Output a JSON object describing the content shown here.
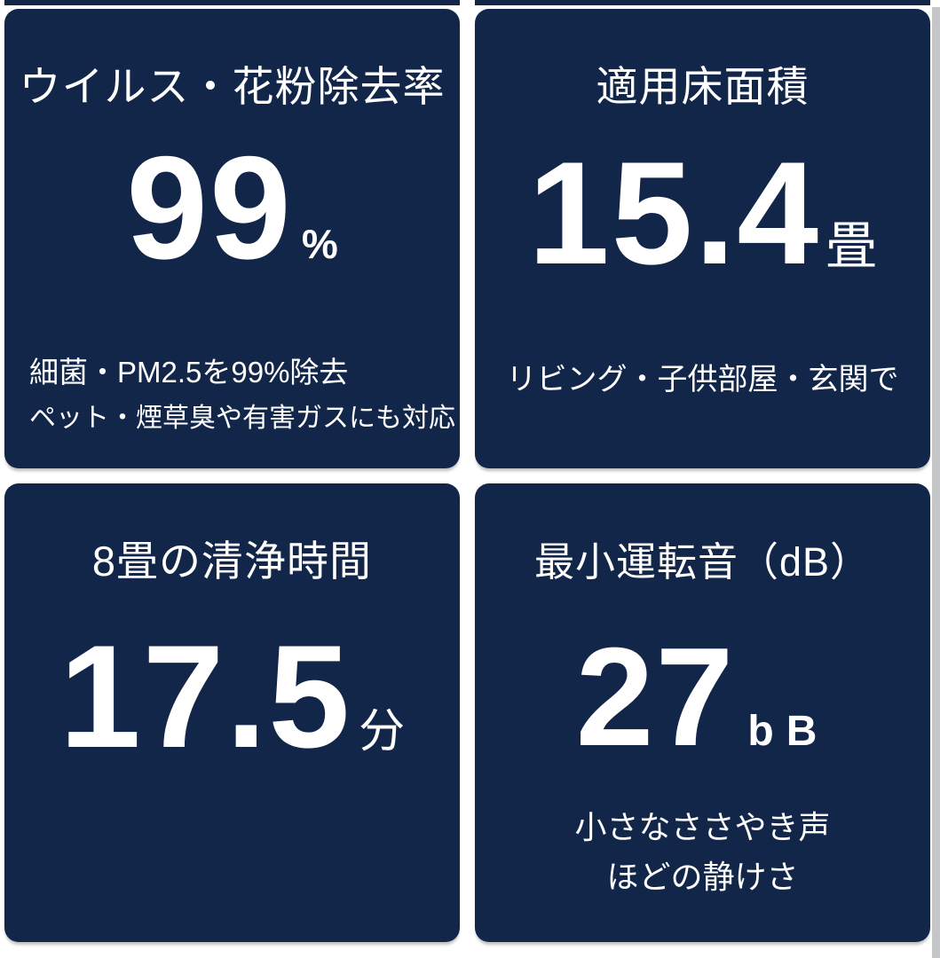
{
  "colors": {
    "background": "#ffffff",
    "card": "#122649",
    "text": "#ffffff",
    "edge_strip": "#c5c6c8"
  },
  "cards": [
    {
      "title": "ウイルス・花粉除去率",
      "value": "99",
      "unit": "%",
      "note1": "細菌・PM2.5を99%除去",
      "note2": "ペット・煙草臭や有害ガスにも対応"
    },
    {
      "title": "適用床面積",
      "value": "15.4",
      "unit": "畳",
      "note1": "リビング・子供部屋・玄関で"
    },
    {
      "title": "8畳の清浄時間",
      "value": "17.5",
      "unit": "分"
    },
    {
      "title": "最小運転音（dB）",
      "value": "27",
      "unit": "bB",
      "note1": "小さなささやき声",
      "note2": "ほどの静けさ"
    }
  ]
}
